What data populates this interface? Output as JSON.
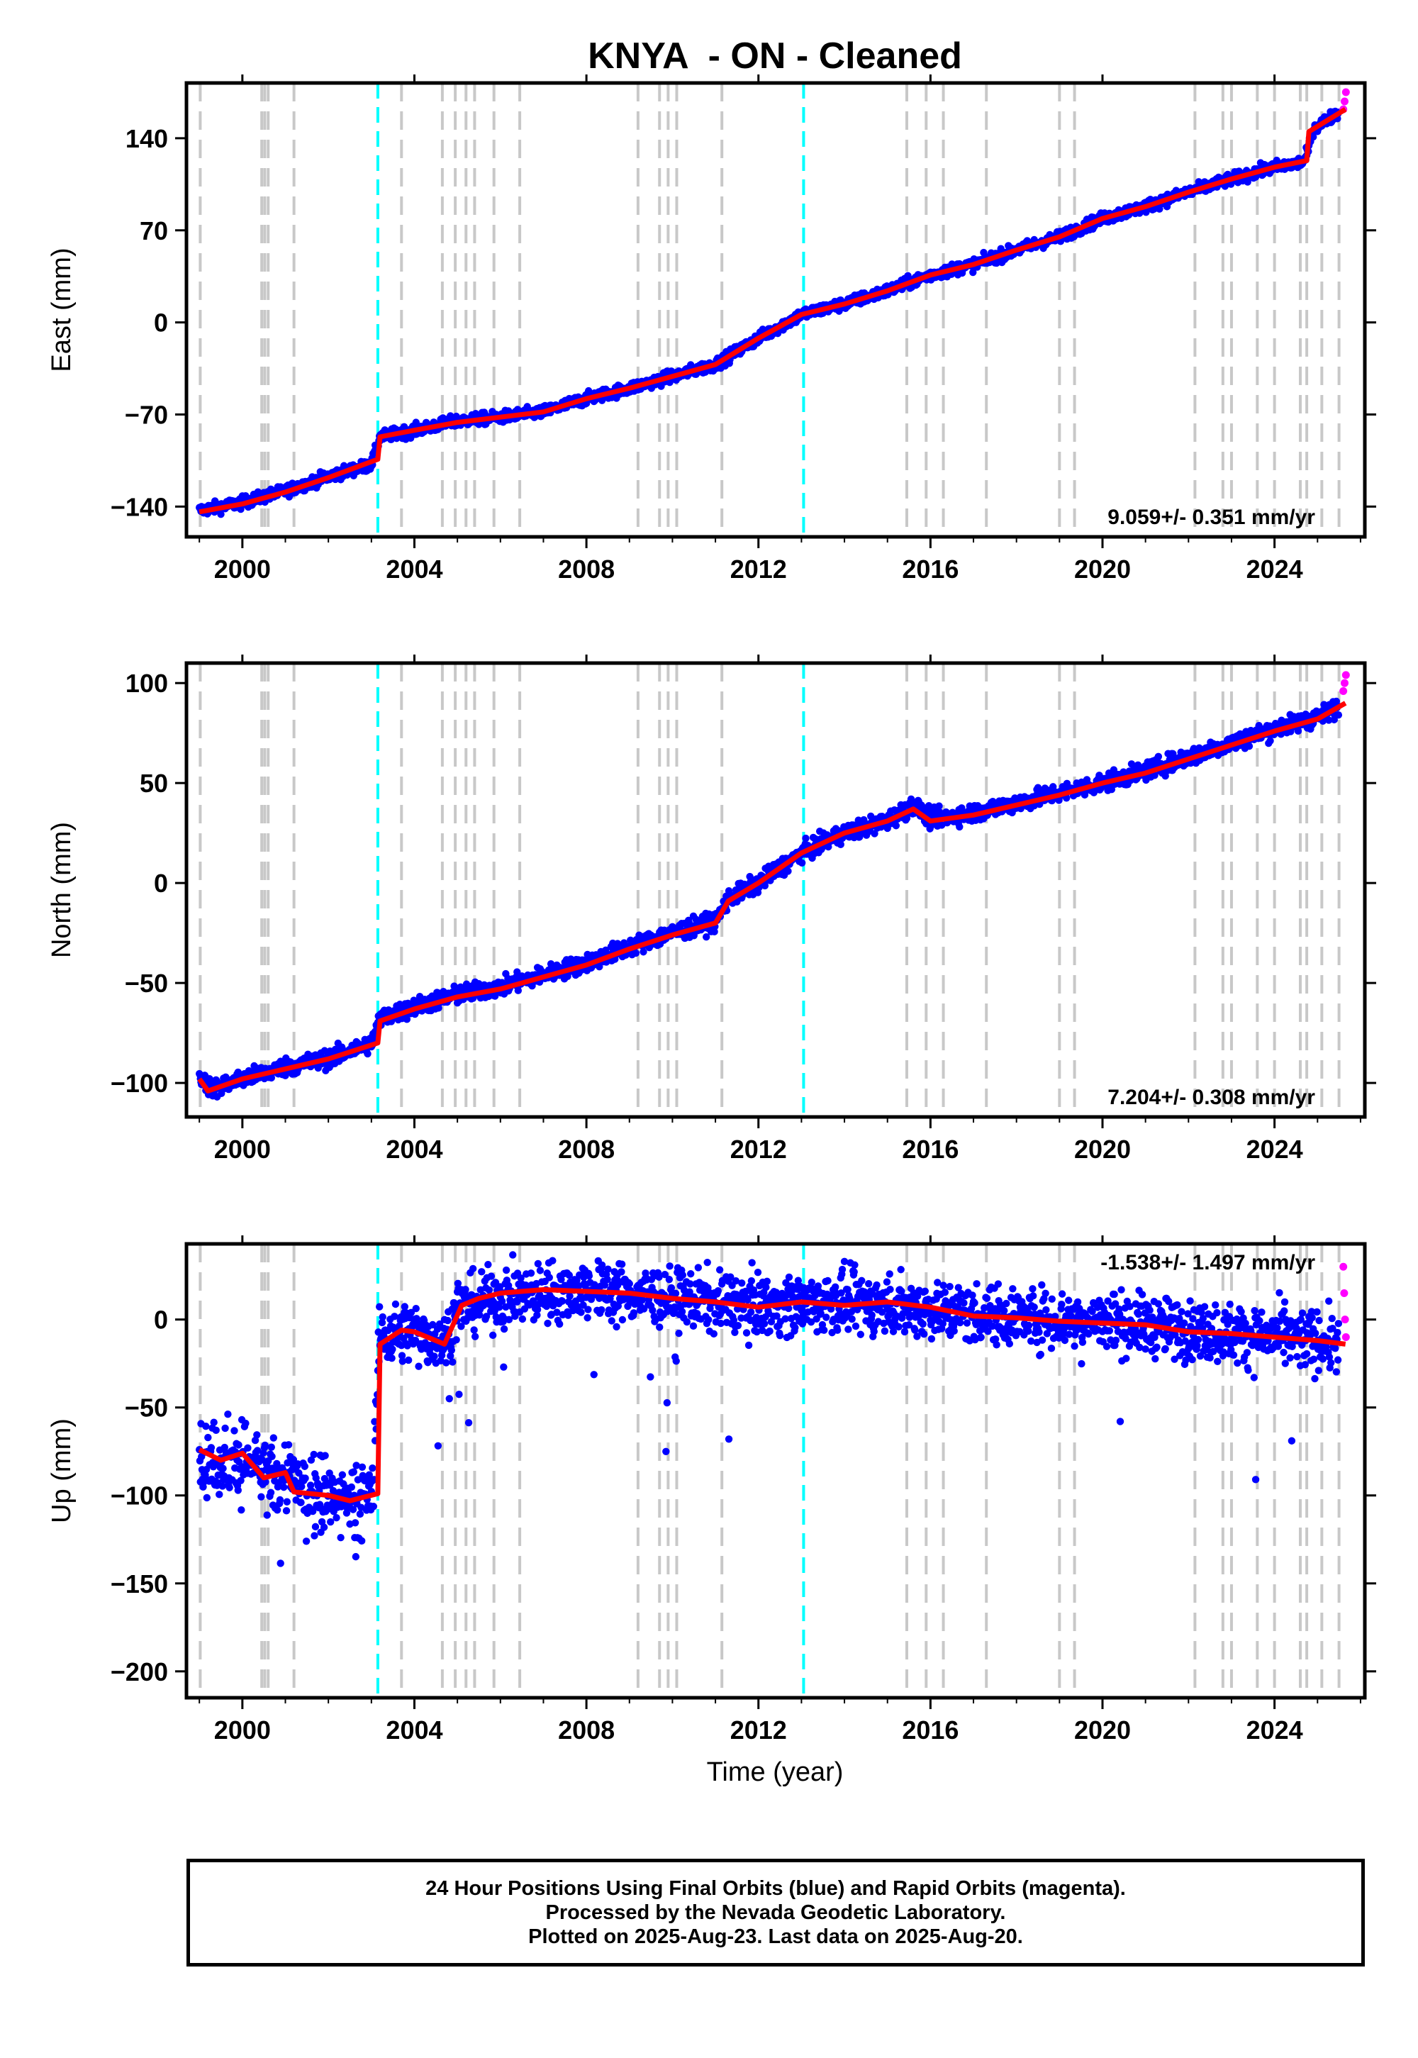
{
  "title": "KNYA  - ON - Cleaned",
  "xlabel": "Time (year)",
  "footer": {
    "line1": "24 Hour Positions Using Final Orbits (blue) and Rapid Orbits (magenta).",
    "line2": "Processed by the Nevada Geodetic Laboratory.",
    "line3": "Plotted on 2025-Aug-23. Last data on 2025-Aug-20."
  },
  "colors": {
    "final_orbits": "#0000ff",
    "rapid_orbits": "#ff00ff",
    "model": "#ff0000",
    "event_gray": "#c8c8c8",
    "event_cyan": "#00ffff"
  },
  "chart_data": [
    {
      "type": "scatter",
      "ylabel": "East (mm)",
      "velocity": "9.059+/- 0.351 mm/yr",
      "xlim": [
        1998.7,
        2026.1
      ],
      "ylim": [
        -163,
        182
      ],
      "xticks": [
        2000,
        2004,
        2008,
        2012,
        2016,
        2020,
        2024
      ],
      "yticks": [
        -140,
        -70,
        0,
        70,
        140
      ],
      "series": [
        {
          "role": "final_orbits",
          "x": [
            1999.0,
            2000.0,
            2001.0,
            2002.0,
            2003.0,
            2003.2,
            2004.0,
            2005.0,
            2006.0,
            2007.0,
            2008.0,
            2009.0,
            2010.0,
            2011.0,
            2012.0,
            2013.0,
            2014.0,
            2015.0,
            2016.0,
            2017.0,
            2018.0,
            2019.0,
            2020.0,
            2021.0,
            2022.0,
            2023.0,
            2024.0,
            2024.7,
            2024.9,
            2025.5
          ],
          "y": [
            -143,
            -137,
            -128,
            -117,
            -108,
            -87,
            -82,
            -75,
            -72,
            -68,
            -58,
            -50,
            -41,
            -32,
            -12,
            6,
            14,
            24,
            36,
            44,
            55,
            65,
            79,
            88,
            99,
            109,
            118,
            122,
            147,
            160
          ]
        },
        {
          "role": "rapid_orbits",
          "x": [
            2025.6,
            2025.63,
            2025.66
          ],
          "y": [
            162,
            168,
            175
          ]
        }
      ],
      "model": {
        "x": [
          1999.0,
          2000.0,
          2001.0,
          2002.0,
          2003.15,
          2003.2,
          2004.0,
          2005.0,
          2006.0,
          2007.0,
          2008.0,
          2009.0,
          2010.0,
          2011.0,
          2012.0,
          2013.0,
          2014.0,
          2015.0,
          2016.0,
          2017.0,
          2018.0,
          2019.0,
          2020.0,
          2021.0,
          2022.0,
          2023.0,
          2024.0,
          2024.75,
          2024.8,
          2025.65
        ],
        "y": [
          -144,
          -138,
          -129,
          -118,
          -104,
          -87,
          -82,
          -76,
          -72,
          -68,
          -58,
          -50,
          -41,
          -32,
          -12,
          6,
          14,
          24,
          36,
          44,
          55,
          65,
          79,
          88,
          99,
          109,
          118,
          123,
          145,
          162
        ]
      }
    },
    {
      "type": "scatter",
      "ylabel": "North (mm)",
      "velocity": "7.204+/- 0.308 mm/yr",
      "xlim": [
        1998.7,
        2026.1
      ],
      "ylim": [
        -117,
        110
      ],
      "xticks": [
        2000,
        2004,
        2008,
        2012,
        2016,
        2020,
        2024
      ],
      "yticks": [
        -100,
        -50,
        0,
        50,
        100
      ],
      "series": [
        {
          "role": "final_orbits",
          "x": [
            1999.0,
            1999.3,
            2000.0,
            2001.0,
            2002.0,
            2003.0,
            2003.2,
            2004.0,
            2005.0,
            2006.0,
            2007.0,
            2008.0,
            2009.0,
            2010.0,
            2011.0,
            2011.3,
            2012.0,
            2013.0,
            2014.0,
            2015.0,
            2015.6,
            2016.0,
            2017.0,
            2018.0,
            2019.0,
            2020.0,
            2021.0,
            2022.0,
            2023.0,
            2024.0,
            2025.0,
            2025.5
          ],
          "y": [
            -97,
            -103,
            -98,
            -92,
            -88,
            -80,
            -68,
            -62,
            -56,
            -52,
            -46,
            -40,
            -32,
            -25,
            -19,
            -8,
            0,
            15,
            25,
            31,
            39,
            32,
            35,
            40,
            45,
            50,
            56,
            63,
            70,
            77,
            83,
            88
          ]
        },
        {
          "role": "rapid_orbits",
          "x": [
            2025.6,
            2025.63,
            2025.66
          ],
          "y": [
            96,
            100,
            104
          ]
        }
      ],
      "model": {
        "x": [
          1999.0,
          1999.2,
          2000.0,
          2001.0,
          2002.0,
          2003.15,
          2003.2,
          2004.0,
          2005.0,
          2006.0,
          2007.0,
          2008.0,
          2009.0,
          2010.0,
          2011.0,
          2011.3,
          2012.0,
          2013.0,
          2014.0,
          2015.0,
          2015.6,
          2016.0,
          2017.0,
          2018.0,
          2019.0,
          2020.0,
          2021.0,
          2022.0,
          2023.0,
          2024.0,
          2025.0,
          2025.65
        ],
        "y": [
          -98,
          -104,
          -98,
          -93,
          -88,
          -80,
          -69,
          -63,
          -57,
          -53,
          -47,
          -41,
          -33,
          -26,
          -20,
          -9,
          0,
          15,
          25,
          31,
          37,
          31,
          34,
          39,
          44,
          50,
          55,
          62,
          69,
          76,
          82,
          90
        ]
      }
    },
    {
      "type": "scatter",
      "ylabel": "Up (mm)",
      "velocity": "-1.538+/- 1.497 mm/yr",
      "xlim": [
        1998.7,
        2026.1
      ],
      "ylim": [
        -215,
        43
      ],
      "xticks": [
        2000,
        2004,
        2008,
        2012,
        2016,
        2020,
        2024
      ],
      "yticks": [
        -200,
        -150,
        -100,
        -50,
        0
      ],
      "series": [
        {
          "role": "final_orbits",
          "x": [
            1999.0,
            1999.5,
            2000.0,
            2000.5,
            2001.0,
            2001.5,
            2002.0,
            2002.5,
            2003.0,
            2003.2,
            2003.6,
            2004.0,
            2004.7,
            2005.0,
            2005.5,
            2006.0,
            2007.0,
            2008.0,
            2009.0,
            2010.0,
            2011.0,
            2012.0,
            2013.0,
            2014.0,
            2015.0,
            2016.0,
            2017.0,
            2018.0,
            2019.0,
            2020.0,
            2021.0,
            2022.0,
            2023.0,
            2024.0,
            2025.0,
            2025.5
          ],
          "y": [
            -75,
            -80,
            -78,
            -90,
            -88,
            -97,
            -100,
            -102,
            -100,
            -10,
            -8,
            -7,
            -13,
            5,
            10,
            12,
            15,
            17,
            15,
            12,
            10,
            8,
            9,
            10,
            8,
            6,
            3,
            2,
            0,
            -1,
            -3,
            -6,
            -8,
            -10,
            -12,
            -14
          ]
        },
        {
          "role": "rapid_orbits",
          "x": [
            2025.6,
            2025.62,
            2025.64,
            2025.66
          ],
          "y": [
            30,
            15,
            0,
            -10
          ]
        }
      ],
      "model": {
        "x": [
          1999.0,
          1999.5,
          2000.0,
          2000.5,
          2001.0,
          2001.2,
          2002.0,
          2002.5,
          2003.15,
          2003.2,
          2003.7,
          2004.0,
          2004.7,
          2005.1,
          2005.5,
          2006.0,
          2007.0,
          2008.0,
          2009.0,
          2010.0,
          2011.0,
          2012.0,
          2013.0,
          2014.0,
          2015.0,
          2016.0,
          2017.0,
          2018.0,
          2019.0,
          2020.0,
          2021.0,
          2022.0,
          2023.0,
          2024.0,
          2025.0,
          2025.65
        ],
        "y": [
          -74,
          -80,
          -76,
          -90,
          -87,
          -98,
          -100,
          -103,
          -99,
          -14,
          -6,
          -7,
          -14,
          8,
          12,
          15,
          17,
          16,
          15,
          12,
          10,
          7,
          10,
          8,
          10,
          7,
          2,
          1,
          -1,
          -2,
          -3,
          -7,
          -8,
          -10,
          -12,
          -14
        ]
      }
    }
  ],
  "events": {
    "gray": [
      1999.02,
      2000.45,
      2000.52,
      2000.6,
      2001.2,
      2003.7,
      2004.65,
      2004.95,
      2005.2,
      2005.4,
      2005.85,
      2006.45,
      2009.2,
      2009.7,
      2009.9,
      2010.1,
      2011.15,
      2015.45,
      2015.9,
      2016.3,
      2017.3,
      2019.0,
      2019.35,
      2022.15,
      2022.8,
      2023.0,
      2023.6,
      2024.0,
      2024.6,
      2024.75,
      2025.1,
      2025.5
    ],
    "cyan": [
      2003.15,
      2013.05
    ]
  }
}
